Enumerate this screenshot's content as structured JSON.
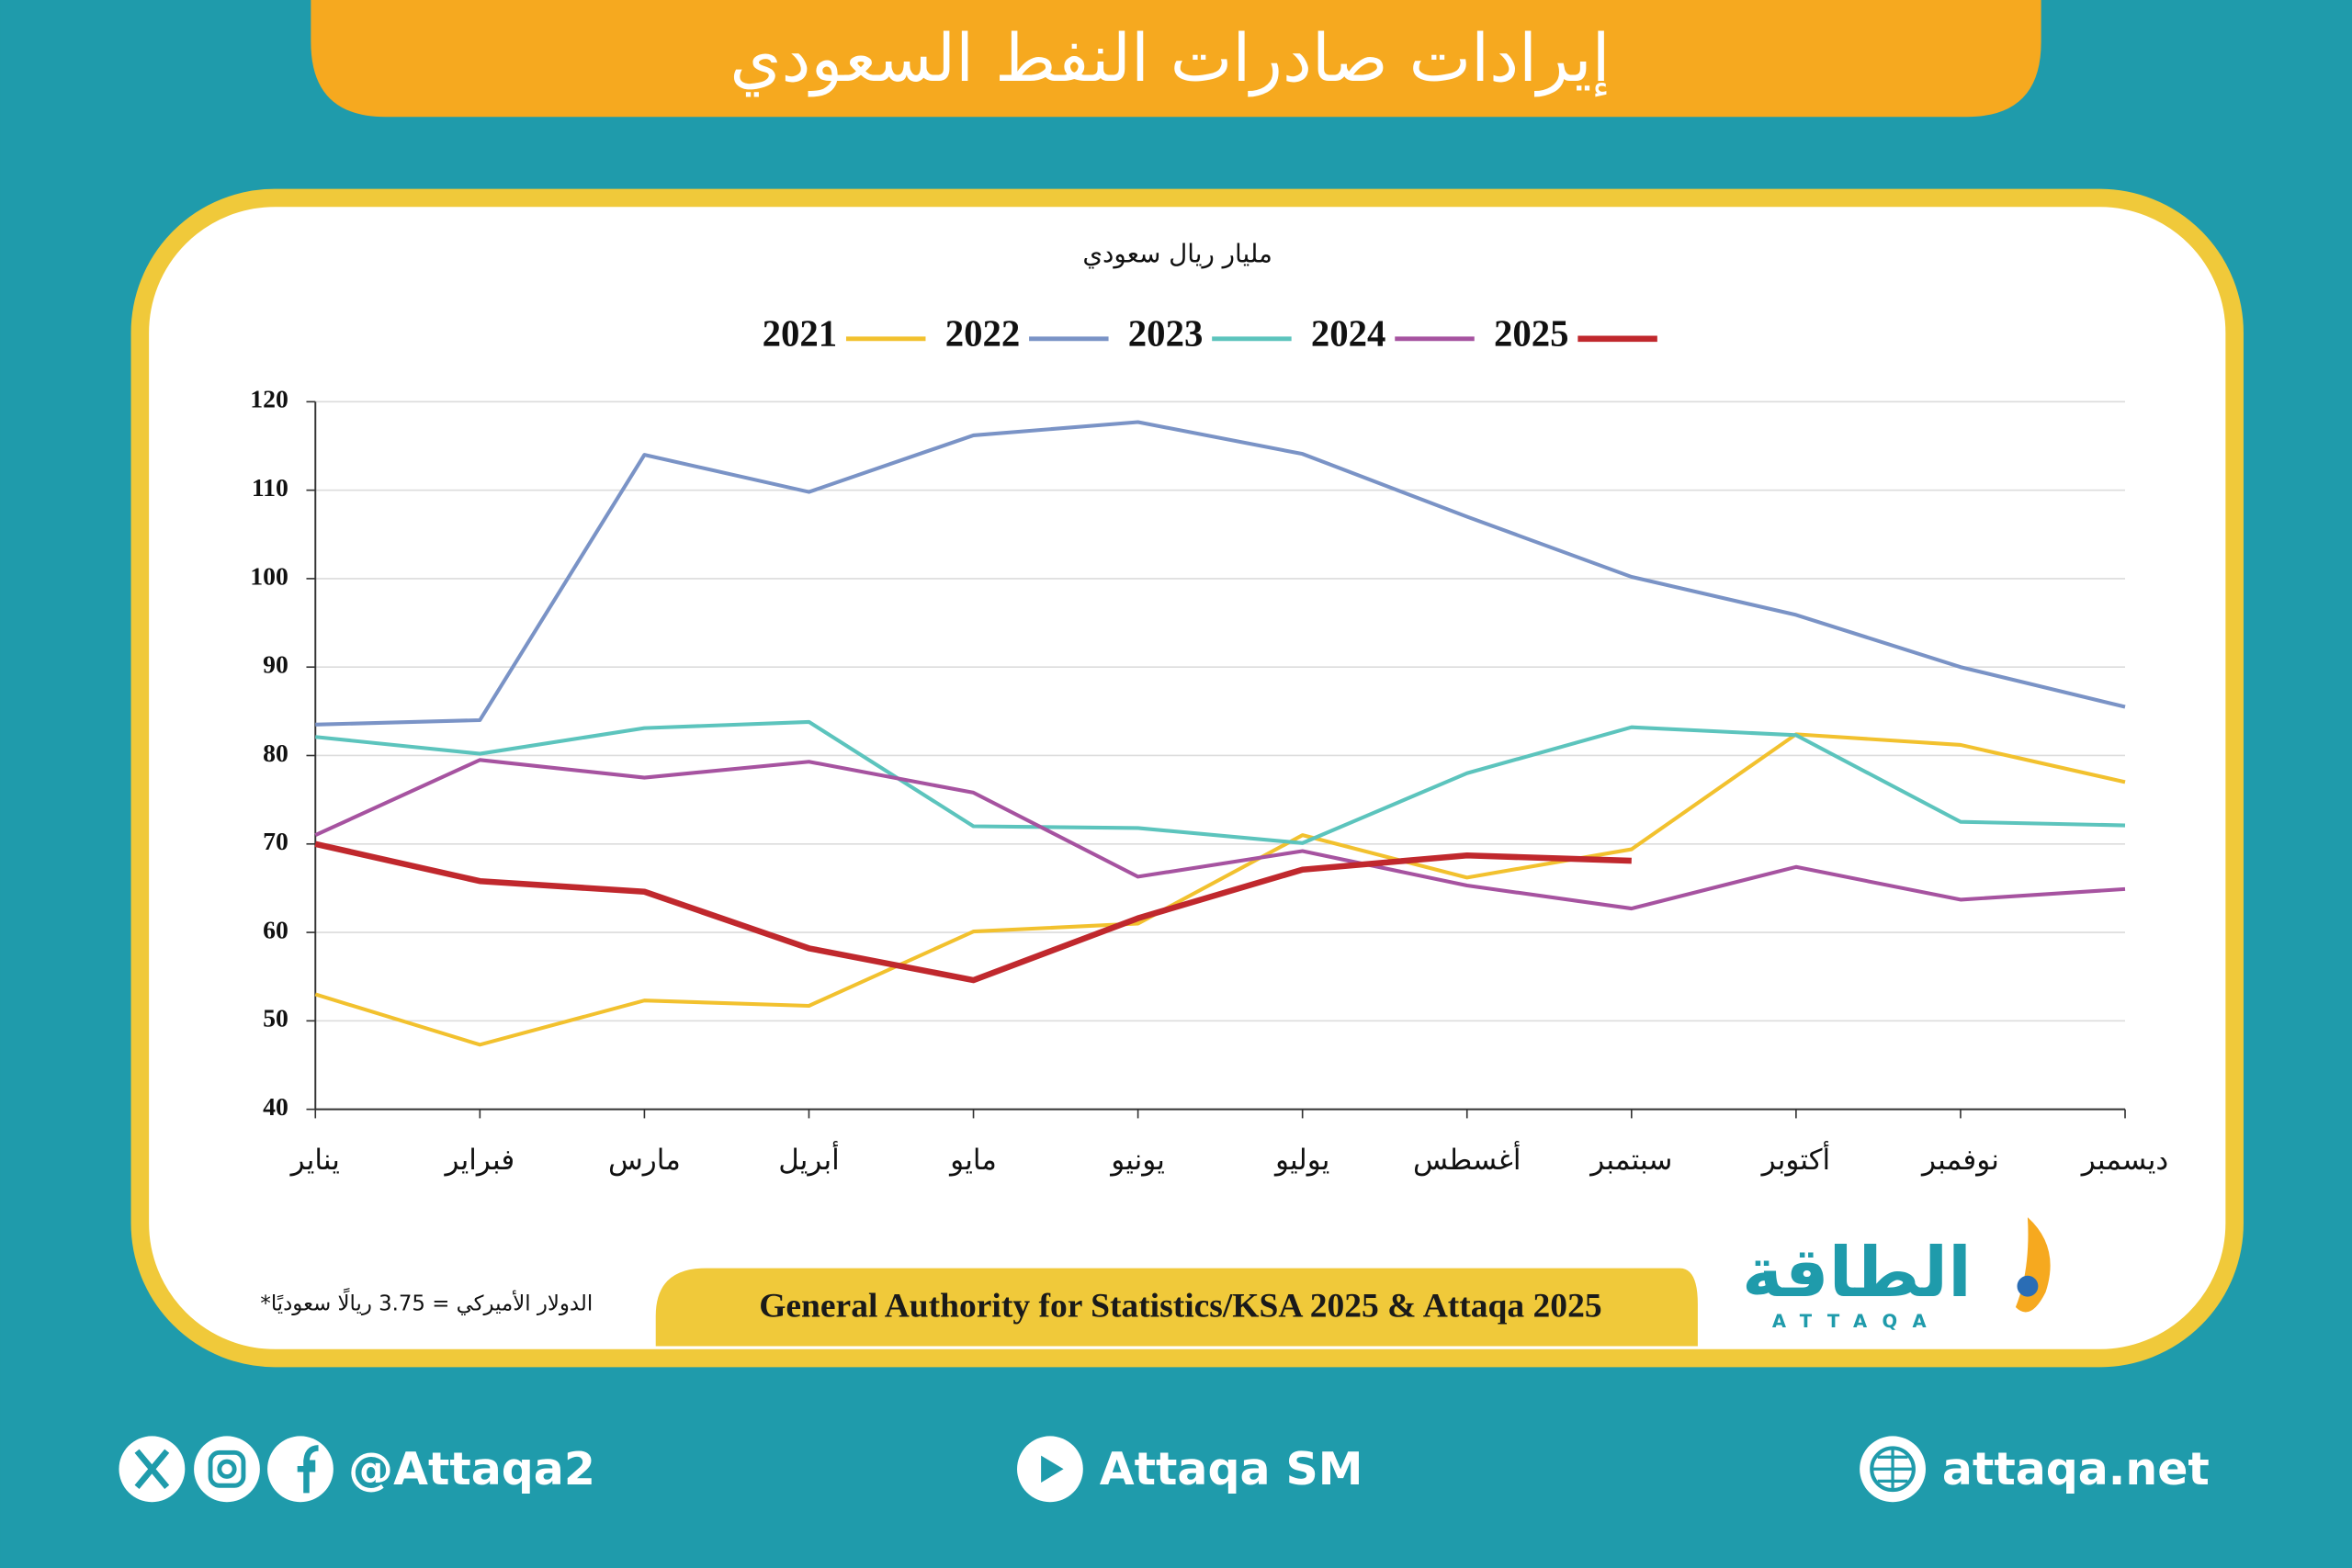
{
  "header": {
    "title": "إيرادات صادرات النفط السعودي"
  },
  "chart_data": {
    "type": "line",
    "unit_label": "مليار ريال سعودي",
    "categories": [
      "يناير",
      "فبراير",
      "مارس",
      "أبريل",
      "مايو",
      "يونيو",
      "يوليو",
      "أغسطس",
      "سبتمبر",
      "أكتوبر",
      "نوفمبر",
      "ديسمبر"
    ],
    "series": [
      {
        "name": "2021",
        "color": "#f2c12e",
        "values": [
          53,
          47.3,
          52.3,
          51.7,
          60.1,
          61,
          71,
          66.2,
          69.4,
          82.4,
          81.2,
          77
        ]
      },
      {
        "name": "2022",
        "color": "#7a93c6",
        "values": [
          83.5,
          84,
          114,
          109.8,
          116.2,
          117.7,
          114.1,
          107,
          100.2,
          95.9,
          90,
          85.5
        ]
      },
      {
        "name": "2023",
        "color": "#5cc4bd",
        "values": [
          82.1,
          80.2,
          83.1,
          83.8,
          72,
          71.8,
          70.1,
          78,
          83.2,
          82.3,
          72.5,
          72.1
        ]
      },
      {
        "name": "2024",
        "color": "#a653a0",
        "values": [
          71,
          79.5,
          77.5,
          79.3,
          75.8,
          66.3,
          69.2,
          65.3,
          62.7,
          67.4,
          63.7,
          64.9
        ]
      },
      {
        "name": "2025",
        "color": "#c0282d",
        "values": [
          70,
          65.8,
          64.6,
          58.2,
          54.6,
          61.6,
          67.1,
          68.7,
          68.1,
          null,
          null,
          null
        ]
      }
    ],
    "ylim": [
      40,
      120
    ],
    "yticks": [
      40,
      50,
      60,
      70,
      80,
      90,
      100,
      110,
      120
    ],
    "grid": true
  },
  "footnote": "*الدولار الأميركي = 3.75 ريالًا سعوديًا",
  "source": "General Authority for Statistics/KSA 2025 & Attaqa 2025",
  "logo": {
    "name": "الطاقة",
    "latin": "ATTAQA"
  },
  "footer": {
    "social": "@Attaqa2",
    "youtube": "Attaqa SM",
    "website": "attaqa.net"
  }
}
